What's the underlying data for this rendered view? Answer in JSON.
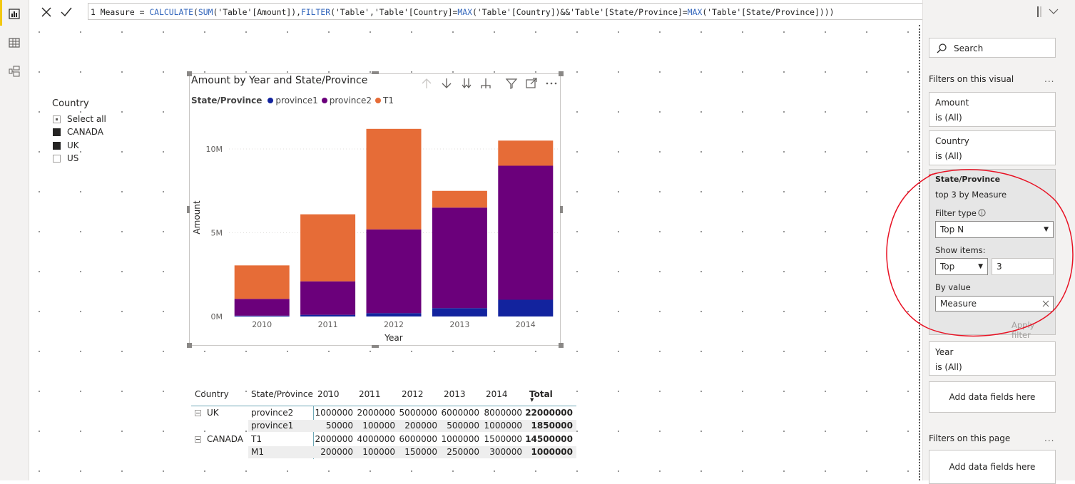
{
  "formula_bar": {
    "line_number": "1",
    "measure_name": "Measure",
    "equals": "=",
    "f_calculate": "CALCULATE",
    "p1": "(",
    "f_sum": "SUM",
    "p2": "('Table'[Amount]),",
    "f_filter": "FILTER",
    "p3": "('Table','Table'[Country]=",
    "f_max1": "MAX",
    "p4": "('Table'[Country])&&'Table'[State/Province]=",
    "f_max2": "MAX",
    "p5": "('Table'[State/Province])))"
  },
  "slicer": {
    "title": "Country",
    "items": [
      {
        "label": "Select all",
        "state": "partial"
      },
      {
        "label": "CANADA",
        "state": "checked"
      },
      {
        "label": "UK",
        "state": "checked"
      },
      {
        "label": "US",
        "state": "unchecked"
      }
    ]
  },
  "chart_data": {
    "type": "bar",
    "stacked": true,
    "title": "Amount by Year and State/Province",
    "legend_title": "State/Province",
    "legend_position": "top-left",
    "xlabel": "Year",
    "ylabel": "Amount",
    "categories": [
      "2010",
      "2011",
      "2012",
      "2013",
      "2014"
    ],
    "y_ticks": [
      {
        "value": 0,
        "label": "0M"
      },
      {
        "value": 5000000,
        "label": "5M"
      },
      {
        "value": 10000000,
        "label": "10M"
      }
    ],
    "ylim": [
      0,
      12000000
    ],
    "grid": true,
    "series": [
      {
        "name": "province1",
        "color": "#12239e",
        "values": [
          50000,
          100000,
          200000,
          500000,
          1000000
        ]
      },
      {
        "name": "province2",
        "color": "#6b007b",
        "values": [
          1000000,
          2000000,
          5000000,
          6000000,
          8000000
        ]
      },
      {
        "name": "T1",
        "color": "#e66c37",
        "values": [
          2000000,
          4000000,
          6000000,
          1000000,
          1500000
        ]
      }
    ]
  },
  "matrix": {
    "headers": [
      "Country",
      "State/Province",
      "2010",
      "2011",
      "2012",
      "2013",
      "2014",
      "Total"
    ],
    "rows": [
      {
        "country": "UK",
        "state": "province2",
        "values": [
          "1000000",
          "2000000",
          "5000000",
          "6000000",
          "8000000"
        ],
        "total": "22000000"
      },
      {
        "country": "",
        "state": "province1",
        "values": [
          "50000",
          "100000",
          "200000",
          "500000",
          "1000000"
        ],
        "total": "1850000"
      },
      {
        "country": "CANADA",
        "state": "T1",
        "values": [
          "2000000",
          "4000000",
          "6000000",
          "1000000",
          "1500000"
        ],
        "total": "14500000"
      },
      {
        "country": "",
        "state": "M1",
        "values": [
          "200000",
          "100000",
          "150000",
          "250000",
          "300000"
        ],
        "total": "1000000"
      }
    ]
  },
  "filter_pane": {
    "search_placeholder": "Search",
    "section_visual": "Filters on this visual",
    "section_page": "Filters on this page",
    "more": "...",
    "cards": [
      {
        "title": "Amount",
        "status": "is (All)"
      },
      {
        "title": "Country",
        "status": "is (All)"
      }
    ],
    "state_card": {
      "title": "State/Province",
      "status": "top 3 by Measure",
      "filter_type_label": "Filter type",
      "filter_type_value": "Top N",
      "show_items_label": "Show items:",
      "show_items_direction": "Top",
      "show_items_count": "3",
      "by_value_label": "By value",
      "by_value_field": "Measure",
      "apply_label": "Apply filter"
    },
    "year_card": {
      "title": "Year",
      "status": "is (All)"
    },
    "add_fields_label": "Add data fields here",
    "accent_annotation_color": "#e81123"
  }
}
